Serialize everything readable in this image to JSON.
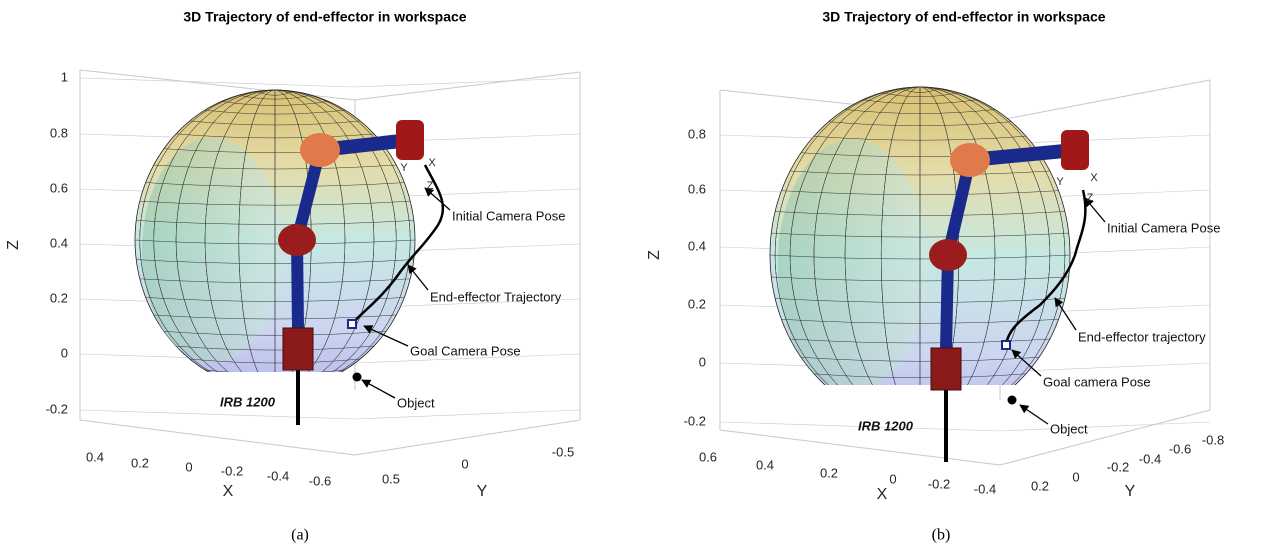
{
  "panels": [
    {
      "title": "3D Trajectory of end-effector in workspace",
      "caption": "(a)",
      "z_label": "Z",
      "x_label": "X",
      "y_label": "Y",
      "z_ticks": [
        1,
        0.8,
        0.6,
        0.4,
        0.2,
        0,
        -0.2
      ],
      "x_ticks": [
        0.4,
        0.2,
        0,
        -0.2,
        -0.4,
        -0.6
      ],
      "y_ticks": [
        0.5,
        0,
        -0.5
      ],
      "annotations": [
        "Initial Camera Pose",
        "End-effector Trajectory",
        "Goal Camera Pose",
        "Object"
      ],
      "robot_label": "IRB 1200",
      "pose_labels": [
        "X",
        "Y",
        "Z"
      ]
    },
    {
      "title": "3D Trajectory of end-effector in workspace",
      "caption": "(b)",
      "z_label": "Z",
      "x_label": "X",
      "y_label": "Y",
      "z_ticks": [
        0.8,
        0.6,
        0.4,
        0.2,
        0,
        -0.2
      ],
      "x_ticks": [
        0.6,
        0.4,
        0.2,
        0,
        -0.2,
        -0.4
      ],
      "y_ticks": [
        0.2,
        0,
        -0.2,
        -0.4,
        -0.6,
        -0.8
      ],
      "annotations": [
        "Initial Camera Pose",
        "End-effector trajectory",
        "Goal camera Pose",
        "Object"
      ],
      "robot_label": "IRB 1200",
      "pose_labels": [
        "X",
        "Y",
        "Z"
      ]
    }
  ]
}
